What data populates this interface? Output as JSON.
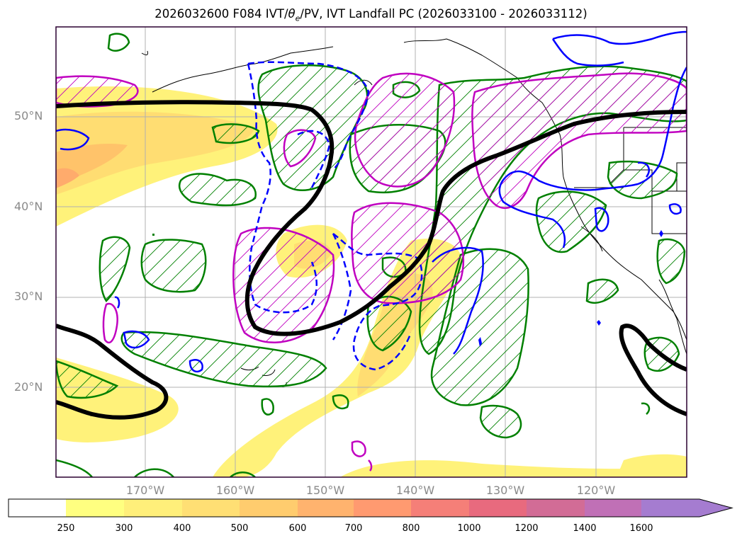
{
  "title": {
    "prefix": "2026032600 F084 IVT/",
    "theta": "θ",
    "theta_sub": "e",
    "suffix": "/PV, IVT Landfall PC (2026033100 - 2026033112)"
  },
  "lat_labels": [
    "50°N",
    "40°N",
    "30°N",
    "20°N"
  ],
  "lon_labels": [
    "170°W",
    "160°W",
    "150°W",
    "140°W",
    "130°W",
    "120°W"
  ],
  "colorbar": {
    "ticks": [
      "250",
      "300",
      "400",
      "500",
      "600",
      "700",
      "800",
      "1000",
      "1200",
      "1400",
      "1600"
    ],
    "colors": [
      "#ffff80",
      "#ffef7a",
      "#ffdf74",
      "#ffcc6e",
      "#ffb36e",
      "#ff9a70",
      "#f57f78",
      "#e86a7e",
      "#d26c96",
      "#c070b6",
      "#a57cd0"
    ],
    "extend": "max"
  },
  "colors": {
    "ivt_fill": "#ffe040",
    "green_contour": "#008000",
    "magenta_contour": "#c000c0",
    "blue_contour": "#0000ff",
    "black_contour": "#000000",
    "grid": "#b0b0b0"
  }
}
